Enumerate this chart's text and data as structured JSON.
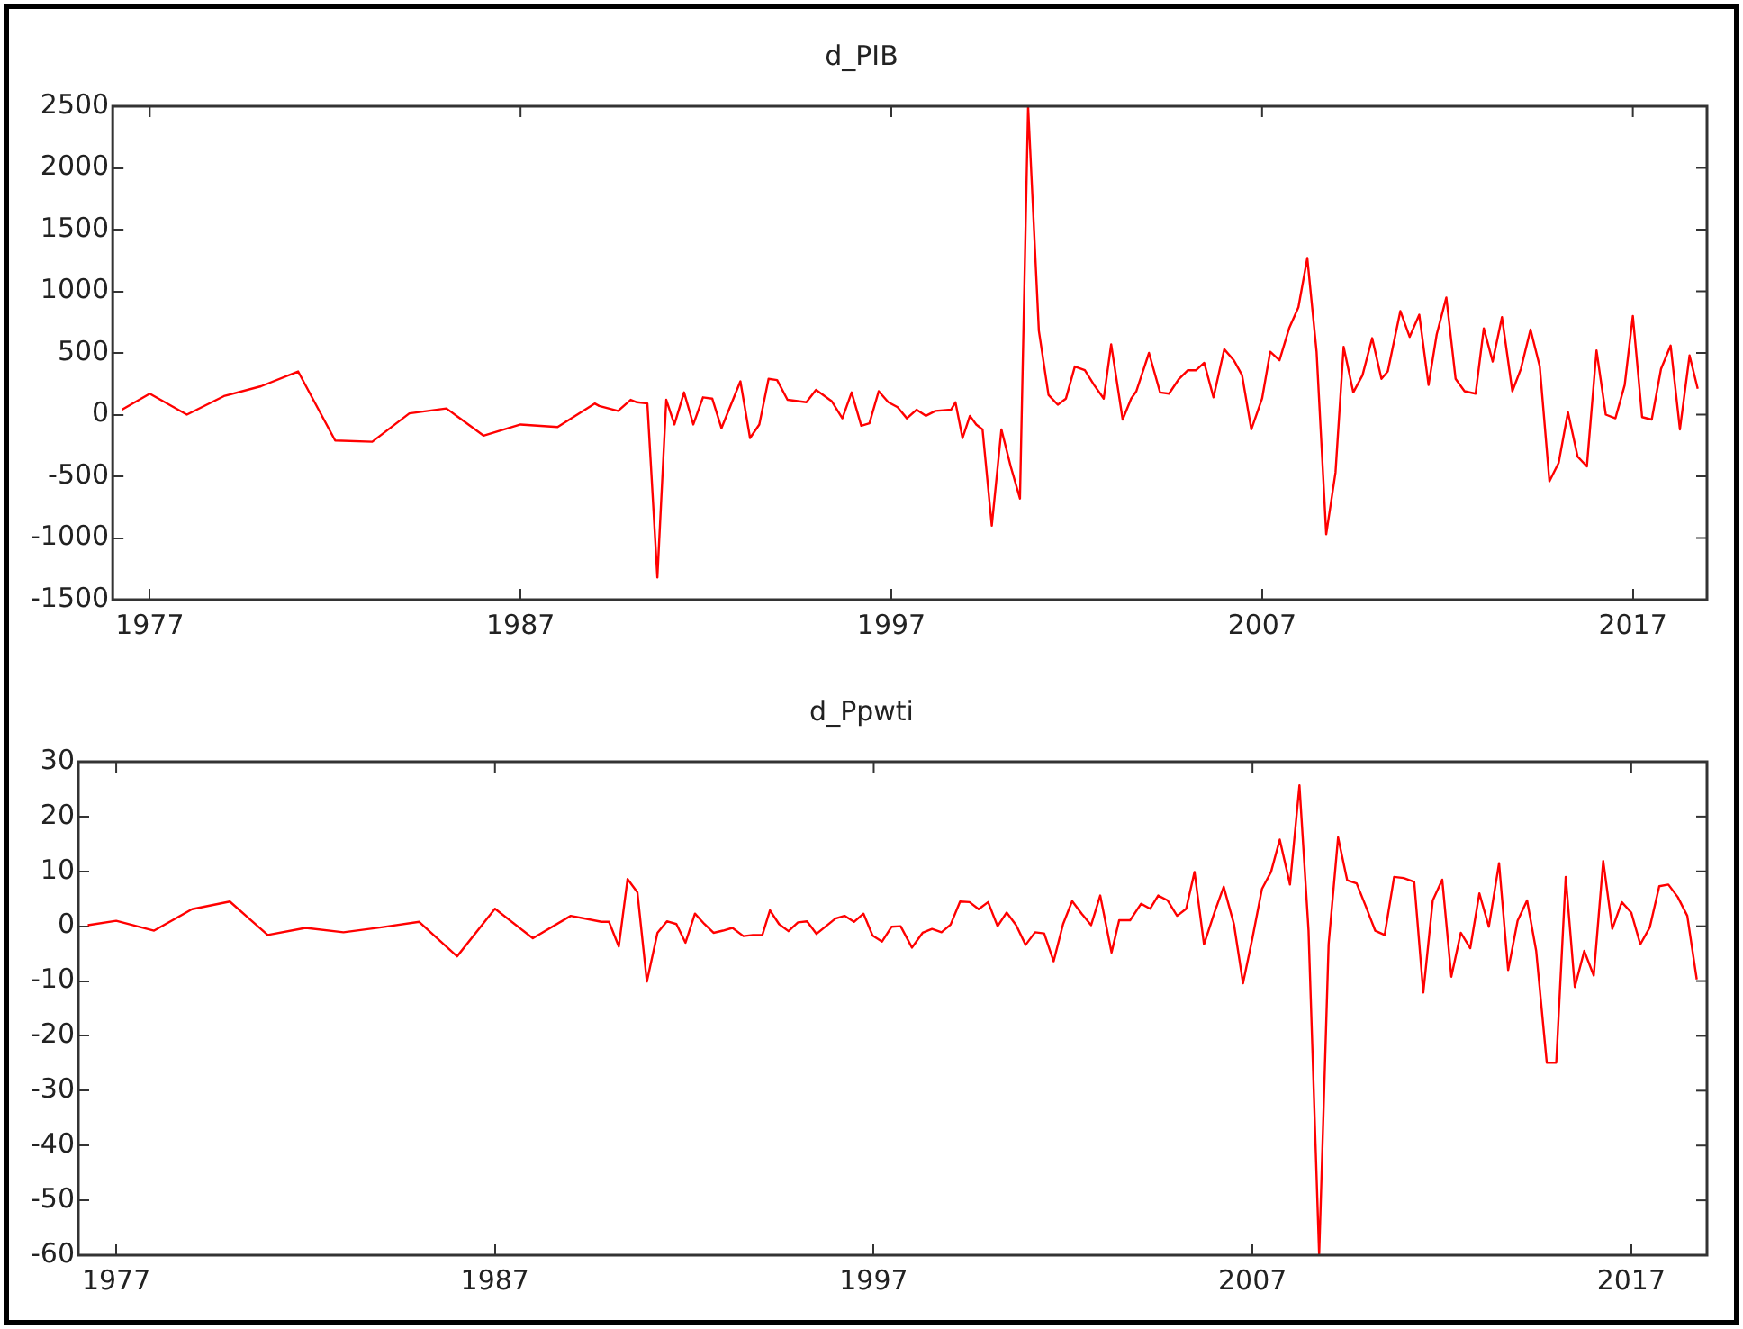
{
  "chart_data": [
    {
      "type": "line",
      "title": "d_PIB",
      "xlim": [
        1976,
        2019
      ],
      "xticks": [
        1977,
        1987,
        1997,
        2007,
        2017
      ],
      "ylim": [
        -1500,
        2500
      ],
      "yticks": [
        -1500,
        -1000,
        -500,
        0,
        500,
        1000,
        1500,
        2000,
        2500
      ],
      "grid": false,
      "legend": false,
      "x": [
        1976.25,
        1977,
        1978,
        1979,
        1980,
        1981,
        1982,
        1983,
        1984,
        1985,
        1986,
        1987,
        1988,
        1989,
        1989.12,
        1989.63,
        1989.97,
        1990.14,
        1990.42,
        1990.69,
        1990.93,
        1991.15,
        1991.41,
        1991.66,
        1991.92,
        1992.17,
        1992.42,
        1992.93,
        1993.19,
        1993.44,
        1993.69,
        1993.92,
        1994.2,
        1994.71,
        1994.97,
        1995.39,
        1995.68,
        1995.93,
        1996.19,
        1996.41,
        1996.66,
        1996.92,
        1997.17,
        1997.42,
        1997.68,
        1997.93,
        1998.19,
        1998.61,
        1998.73,
        1998.92,
        1999.12,
        1999.29,
        1999.46,
        1999.71,
        1999.97,
        2000.22,
        2000.47,
        2000.69,
        2000.98,
        2001.24,
        2001.49,
        2001.71,
        2001.95,
        2002.22,
        2002.47,
        2002.73,
        2002.93,
        2003.24,
        2003.47,
        2003.61,
        2003.95,
        2004.25,
        2004.49,
        2004.76,
        2005,
        2005.22,
        2005.44,
        2005.69,
        2005.98,
        2006.24,
        2006.46,
        2006.71,
        2007,
        2007.22,
        2007.47,
        2007.73,
        2007.98,
        2008.22,
        2008.47,
        2008.73,
        2008.98,
        2009.2,
        2009.46,
        2009.71,
        2009.97,
        2010.22,
        2010.39,
        2010.73,
        2010.98,
        2011.24,
        2011.49,
        2011.71,
        2011.97,
        2012.22,
        2012.46,
        2012.76,
        2012.98,
        2013.22,
        2013.47,
        2013.75,
        2013.98,
        2014.24,
        2014.49,
        2014.75,
        2015,
        2015.25,
        2015.51,
        2015.76,
        2016.02,
        2016.27,
        2016.53,
        2016.78,
        2017,
        2017.25,
        2017.51,
        2017.76,
        2018.02,
        2018.27,
        2018.53,
        2018.75
      ],
      "series": [
        {
          "color": "#ff0000",
          "values": [
            40,
            170,
            0,
            150,
            230,
            350,
            -210,
            -220,
            10,
            50,
            -170,
            -80,
            -100,
            90,
            70,
            30,
            120,
            100,
            90,
            -1320,
            120,
            -80,
            180,
            -80,
            140,
            130,
            -110,
            270,
            -190,
            -80,
            290,
            280,
            120,
            100,
            200,
            110,
            -30,
            180,
            -90,
            -70,
            190,
            100,
            60,
            -30,
            40,
            -10,
            30,
            40,
            100,
            -190,
            -10,
            -80,
            -120,
            -900,
            -120,
            -420,
            -680,
            2500,
            680,
            160,
            80,
            130,
            390,
            360,
            240,
            130,
            570,
            -40,
            130,
            190,
            500,
            180,
            170,
            290,
            360,
            360,
            420,
            140,
            530,
            440,
            320,
            -120,
            130,
            510,
            440,
            700,
            870,
            1270,
            510,
            -970,
            -470,
            550,
            180,
            320,
            620,
            290,
            350,
            840,
            630,
            810,
            240,
            650,
            950,
            290,
            190,
            170,
            700,
            430,
            790,
            190,
            370,
            690,
            390,
            -540,
            -390,
            20,
            -340,
            -420,
            520,
            0,
            -30,
            240,
            800,
            -20,
            -40,
            370,
            560,
            -120,
            480,
            210
          ]
        }
      ]
    },
    {
      "type": "line",
      "title": "d_Ppwti",
      "xlim": [
        1976,
        2019
      ],
      "xticks": [
        1977,
        1987,
        1997,
        2007,
        2017
      ],
      "ylim": [
        -60,
        30
      ],
      "yticks": [
        -60,
        -50,
        -40,
        -30,
        -20,
        -10,
        0,
        10,
        20,
        30
      ],
      "grid": false,
      "legend": false,
      "x": [
        1976.25,
        1977,
        1978,
        1979,
        1980,
        1981,
        1982,
        1983,
        1984,
        1985,
        1986,
        1987,
        1988,
        1989,
        1989.81,
        1990.01,
        1990.27,
        1990.5,
        1990.76,
        1991.01,
        1991.29,
        1991.54,
        1991.79,
        1992.03,
        1992.28,
        1992.53,
        1992.77,
        1993.02,
        1993.27,
        1993.56,
        1993.81,
        1994.06,
        1994.26,
        1994.5,
        1994.75,
        1995,
        1995.24,
        1995.49,
        1995.74,
        1995.99,
        1996.23,
        1996.48,
        1996.73,
        1996.97,
        1997.22,
        1997.47,
        1997.71,
        1998.01,
        1998.29,
        1998.54,
        1998.79,
        1999.03,
        1999.28,
        1999.53,
        1999.77,
        2000.02,
        2000.27,
        2000.51,
        2000.76,
        2001.01,
        2001.26,
        2001.5,
        2001.75,
        2002,
        2002.24,
        2002.49,
        2002.74,
        2002.98,
        2003.28,
        2003.48,
        2003.77,
        2004.06,
        2004.3,
        2004.51,
        2004.76,
        2005.01,
        2005.25,
        2005.47,
        2005.72,
        2006,
        2006.24,
        2006.51,
        2006.75,
        2007,
        2007.25,
        2007.49,
        2007.72,
        2007.99,
        2008.24,
        2008.48,
        2008.76,
        2009.01,
        2009.26,
        2009.5,
        2009.75,
        2010,
        2010.24,
        2010.49,
        2010.74,
        2010.99,
        2011.27,
        2011.51,
        2011.76,
        2012.01,
        2012.25,
        2012.5,
        2012.75,
        2012.99,
        2013.24,
        2013.51,
        2013.75,
        2014,
        2014.25,
        2014.49,
        2014.77,
        2015.02,
        2015.27,
        2015.51,
        2015.76,
        2016.01,
        2016.26,
        2016.5,
        2016.75,
        2017,
        2017.24,
        2017.49,
        2017.74,
        2017.98,
        2018.23,
        2018.48,
        2018.73
      ],
      "series": [
        {
          "color": "#ff0000",
          "values": [
            0.2,
            1.0,
            -0.8,
            3.1,
            4.5,
            -1.6,
            -0.3,
            -1.1,
            -0.2,
            0.8,
            -5.5,
            3.2,
            -2.2,
            1.9,
            0.8,
            0.8,
            -3.7,
            8.6,
            6.2,
            -10.1,
            -1.2,
            0.9,
            0.4,
            -3.0,
            2.3,
            0.4,
            -1.2,
            -0.8,
            -0.3,
            -1.8,
            -1.6,
            -1.6,
            2.9,
            0.4,
            -0.9,
            0.7,
            0.9,
            -1.4,
            0,
            1.4,
            1.9,
            0.8,
            2.3,
            -1.7,
            -2.8,
            -0.1,
            0,
            -3.9,
            -1.2,
            -0.5,
            -1.1,
            0.3,
            4.5,
            4.4,
            3.1,
            4.4,
            0,
            2.5,
            0.2,
            -3.4,
            -1.1,
            -1.3,
            -6.4,
            0.4,
            4.6,
            2.3,
            0.2,
            5.6,
            -4.8,
            1.1,
            1.1,
            4.1,
            3.2,
            5.6,
            4.7,
            1.9,
            3.2,
            9.9,
            -3.3,
            2.6,
            7.2,
            0.4,
            -10.4,
            -2.1,
            6.8,
            9.9,
            15.8,
            7.6,
            25.7,
            -0.8,
            -60,
            -3.3,
            16.2,
            8.4,
            7.8,
            3.5,
            -0.8,
            -1.6,
            9.0,
            8.8,
            8.1,
            -12.1,
            4.7,
            8.5,
            -9.2,
            -1.2,
            -4.0,
            6.0,
            -0.1,
            11.5,
            -8.0,
            1.0,
            4.7,
            -4.5,
            -24.9,
            -24.9,
            9.0,
            -11.1,
            -4.5,
            -9.0,
            11.9,
            -0.5,
            4.4,
            2.5,
            -3.3,
            -0.2,
            7.3,
            7.6,
            5.3,
            1.9,
            -9.7
          ]
        }
      ]
    }
  ]
}
